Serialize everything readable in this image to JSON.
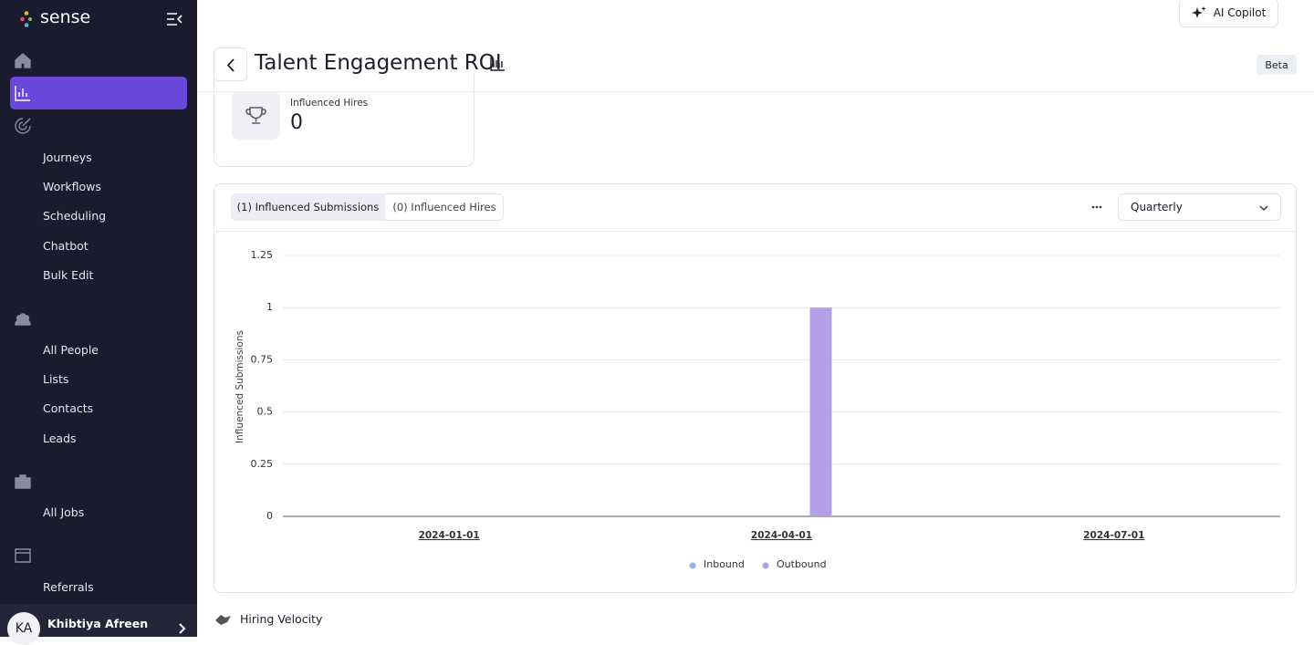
{
  "sidebar": {
    "brand": "sense",
    "nav": [
      {
        "label": "Dashboard"
      },
      {
        "label": "Analytics & Data"
      },
      {
        "label": "Automation",
        "items": [
          "Journeys",
          "Workflows",
          "Scheduling",
          "Chatbot",
          "Bulk Edit"
        ]
      },
      {
        "label": "People",
        "items": [
          "All People",
          "Lists",
          "Contacts",
          "Leads"
        ]
      },
      {
        "label": "Jobs",
        "items": [
          "All Jobs"
        ]
      },
      {
        "label": "Sourcing",
        "items": [
          "Referrals"
        ]
      }
    ],
    "user": {
      "initials": "KA",
      "name": "Khibtiya Afreen"
    }
  },
  "header": {
    "title": "Talent Engagement ROI",
    "badge": "Beta",
    "copilot": "AI Copilot"
  },
  "card": {
    "label": "Influenced Hires",
    "value": 0
  },
  "tabs": [
    "(1) Influenced Submissions",
    "(0) Influenced Hires"
  ],
  "period": "Quarterly",
  "chart_data": {
    "type": "bar",
    "y_label": "Influenced Submissions",
    "categories": [
      "2024-01-01",
      "2024-04-01",
      "2024-07-01"
    ],
    "series": [
      {
        "name": "Inbound",
        "color": "#93b4e8",
        "values": [
          0,
          0,
          0
        ]
      },
      {
        "name": "Outbound",
        "color": "#b3a0e6",
        "values": [
          0,
          1,
          0
        ]
      }
    ],
    "ylim": [
      0,
      1.25
    ],
    "yticks": [
      0,
      0.25,
      0.5,
      0.75,
      1,
      1.25
    ],
    "grid": true
  },
  "section": "Hiring Velocity"
}
